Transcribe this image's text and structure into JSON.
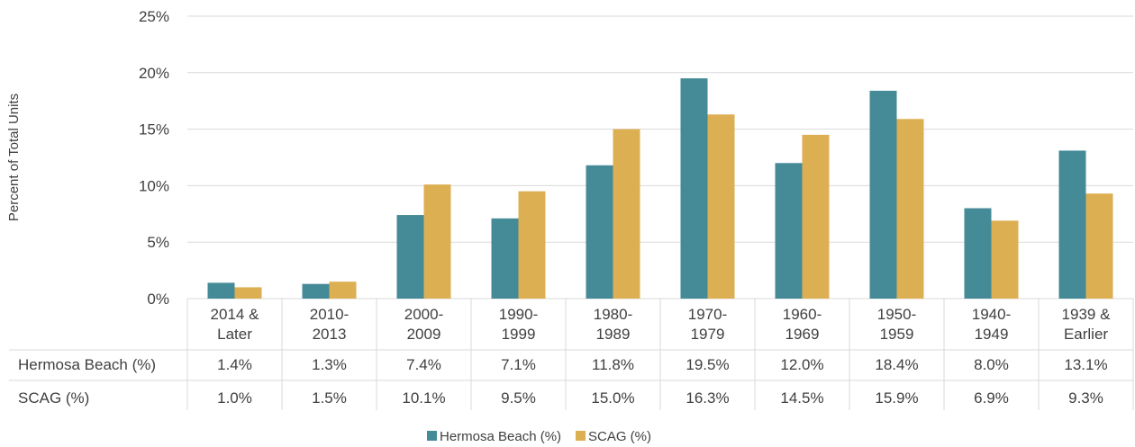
{
  "chart_data": {
    "type": "bar",
    "ylabel": "Percent of Total Units",
    "ylim": [
      0,
      25
    ],
    "yticks": [
      "0%",
      "5%",
      "10%",
      "15%",
      "20%",
      "25%"
    ],
    "categories": [
      [
        "2014 &",
        "Later"
      ],
      [
        "2010-",
        "2013"
      ],
      [
        "2000-",
        "2009"
      ],
      [
        "1990-",
        "1999"
      ],
      [
        "1980-",
        "1989"
      ],
      [
        "1970-",
        "1979"
      ],
      [
        "1960-",
        "1969"
      ],
      [
        "1950-",
        "1959"
      ],
      [
        "1940-",
        "1949"
      ],
      [
        "1939 &",
        "Earlier"
      ]
    ],
    "series": [
      {
        "name": "Hermosa Beach (%)",
        "color": "#458a97",
        "values": [
          1.4,
          1.3,
          7.4,
          7.1,
          11.8,
          19.5,
          12.0,
          18.4,
          8.0,
          13.1
        ],
        "labels": [
          "1.4%",
          "1.3%",
          "7.4%",
          "7.1%",
          "11.8%",
          "19.5%",
          "12.0%",
          "18.4%",
          "8.0%",
          "13.1%"
        ]
      },
      {
        "name": "SCAG (%)",
        "color": "#ddaf53",
        "values": [
          1.0,
          1.5,
          10.1,
          9.5,
          15.0,
          16.3,
          14.5,
          15.9,
          6.9,
          9.3
        ],
        "labels": [
          "1.0%",
          "1.5%",
          "10.1%",
          "9.5%",
          "15.0%",
          "16.3%",
          "14.5%",
          "15.9%",
          "6.9%",
          "9.3%"
        ]
      }
    ],
    "grid": true,
    "legend": "bottom",
    "data_table": true
  }
}
